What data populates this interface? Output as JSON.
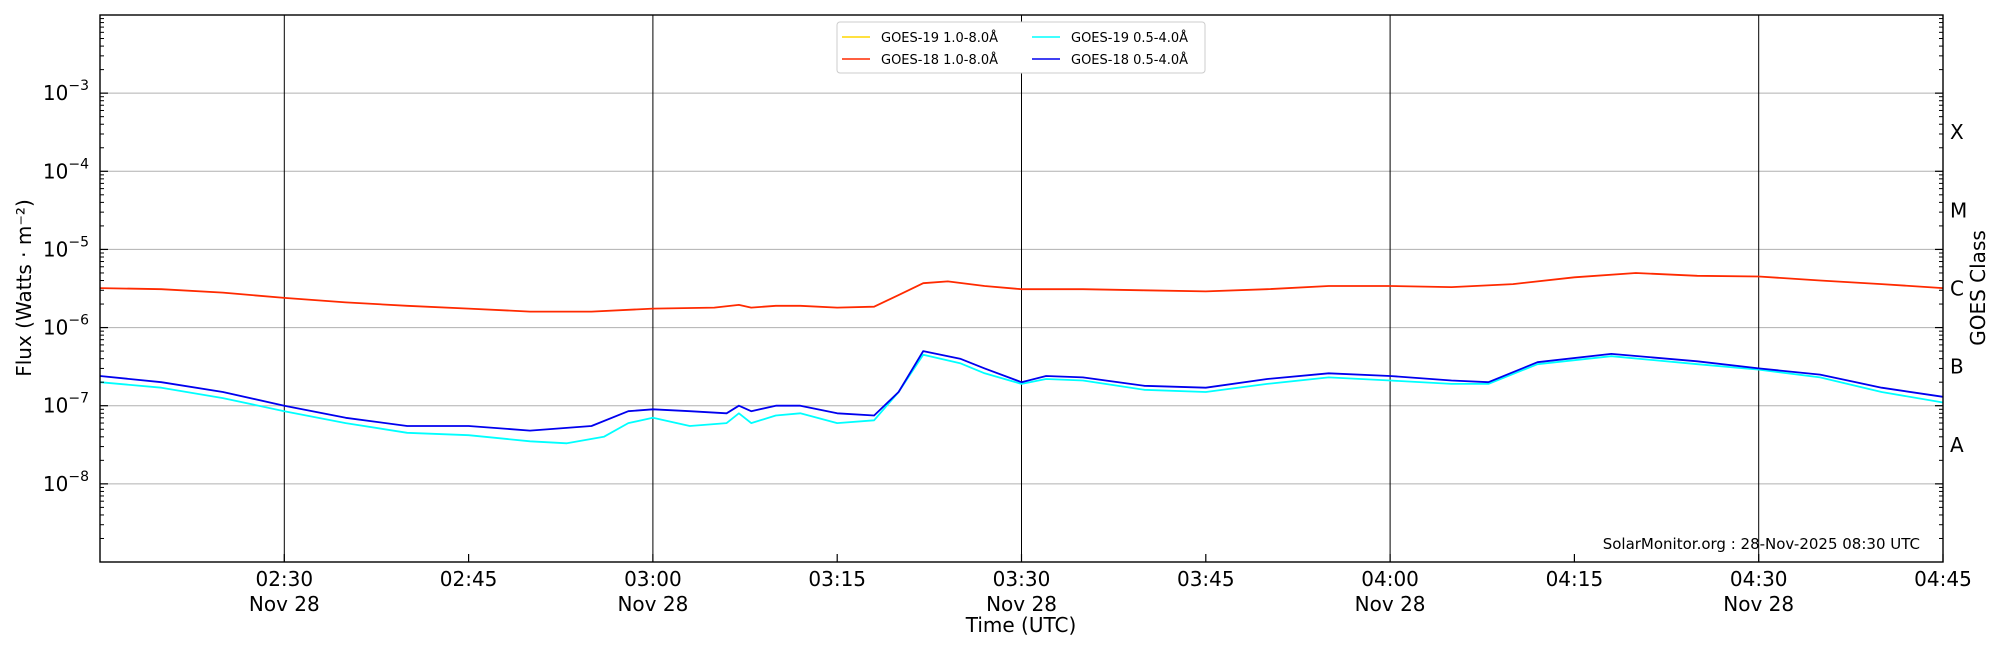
{
  "chart_data": {
    "type": "line",
    "xlabel": "Time (UTC)",
    "ylabel": "Flux (Watts · m⁻²)",
    "right_ylabel": "GOES Class",
    "credit": "SolarMonitor.org : 28-Nov-2025 08:30 UTC",
    "y_scale": "log",
    "ylim": [
      1e-09,
      0.01
    ],
    "xlim": [
      "2025-11-28 02:15",
      "2025-11-28 04:45"
    ],
    "grid": "horizontal at each decade; vertical lines every 30 min",
    "legend_position": "top-center",
    "x_ticks": [
      {
        "t": "02:30",
        "time": "02:30",
        "date": "Nov 28"
      },
      {
        "t": "02:45",
        "time": "02:45",
        "date": ""
      },
      {
        "t": "03:00",
        "time": "03:00",
        "date": "Nov 28"
      },
      {
        "t": "03:15",
        "time": "03:15",
        "date": ""
      },
      {
        "t": "03:30",
        "time": "03:30",
        "date": "Nov 28"
      },
      {
        "t": "03:45",
        "time": "03:45",
        "date": ""
      },
      {
        "t": "04:00",
        "time": "04:00",
        "date": "Nov 28"
      },
      {
        "t": "04:15",
        "time": "04:15",
        "date": ""
      },
      {
        "t": "04:30",
        "time": "04:30",
        "date": "Nov 28"
      },
      {
        "t": "04:45",
        "time": "04:45",
        "date": ""
      }
    ],
    "y_ticks": [
      {
        "value": 1e-08,
        "base": "10",
        "exp": "−8"
      },
      {
        "value": 1e-07,
        "base": "10",
        "exp": "−7"
      },
      {
        "value": 1e-06,
        "base": "10",
        "exp": "−6"
      },
      {
        "value": 1e-05,
        "base": "10",
        "exp": "−5"
      },
      {
        "value": 0.0001,
        "base": "10",
        "exp": "−4"
      },
      {
        "value": 0.001,
        "base": "10",
        "exp": "−3"
      }
    ],
    "goes_classes": [
      {
        "label": "A",
        "value": 3.16e-08
      },
      {
        "label": "B",
        "value": 3.16e-07
      },
      {
        "label": "C",
        "value": 3.16e-06
      },
      {
        "label": "M",
        "value": 3.16e-05
      },
      {
        "label": "X",
        "value": 0.000316
      }
    ],
    "series": [
      {
        "name": "GOES-19 1.0-8.0Å",
        "color": "#ffd700",
        "points": []
      },
      {
        "name": "GOES-18 1.0-8.0Å",
        "color": "#ff2a00",
        "points": [
          [
            "02:15",
            3.2e-06
          ],
          [
            "02:20",
            3.1e-06
          ],
          [
            "02:25",
            2.8e-06
          ],
          [
            "02:30",
            2.4e-06
          ],
          [
            "02:35",
            2.1e-06
          ],
          [
            "02:40",
            1.9e-06
          ],
          [
            "02:45",
            1.75e-06
          ],
          [
            "02:50",
            1.6e-06
          ],
          [
            "02:55",
            1.6e-06
          ],
          [
            "03:00",
            1.75e-06
          ],
          [
            "03:05",
            1.8e-06
          ],
          [
            "03:07",
            1.95e-06
          ],
          [
            "03:08",
            1.8e-06
          ],
          [
            "03:10",
            1.9e-06
          ],
          [
            "03:12",
            1.9e-06
          ],
          [
            "03:15",
            1.8e-06
          ],
          [
            "03:18",
            1.85e-06
          ],
          [
            "03:20",
            2.6e-06
          ],
          [
            "03:22",
            3.7e-06
          ],
          [
            "03:24",
            3.9e-06
          ],
          [
            "03:27",
            3.4e-06
          ],
          [
            "03:30",
            3.1e-06
          ],
          [
            "03:35",
            3.1e-06
          ],
          [
            "03:40",
            3e-06
          ],
          [
            "03:45",
            2.9e-06
          ],
          [
            "03:50",
            3.1e-06
          ],
          [
            "03:55",
            3.4e-06
          ],
          [
            "04:00",
            3.4e-06
          ],
          [
            "04:05",
            3.3e-06
          ],
          [
            "04:10",
            3.6e-06
          ],
          [
            "04:15",
            4.4e-06
          ],
          [
            "04:20",
            5e-06
          ],
          [
            "04:25",
            4.6e-06
          ],
          [
            "04:30",
            4.5e-06
          ],
          [
            "04:35",
            4e-06
          ],
          [
            "04:40",
            3.6e-06
          ],
          [
            "04:45",
            3.2e-06
          ]
        ]
      },
      {
        "name": "GOES-19 0.5-4.0Å",
        "color": "#00ffff",
        "points": [
          [
            "02:15",
            2e-07
          ],
          [
            "02:20",
            1.7e-07
          ],
          [
            "02:25",
            1.25e-07
          ],
          [
            "02:30",
            8.5e-08
          ],
          [
            "02:35",
            6e-08
          ],
          [
            "02:40",
            4.5e-08
          ],
          [
            "02:45",
            4.2e-08
          ],
          [
            "02:50",
            3.5e-08
          ],
          [
            "02:53",
            3.3e-08
          ],
          [
            "02:56",
            4e-08
          ],
          [
            "02:58",
            6e-08
          ],
          [
            "03:00",
            7e-08
          ],
          [
            "03:03",
            5.5e-08
          ],
          [
            "03:06",
            6e-08
          ],
          [
            "03:07",
            8e-08
          ],
          [
            "03:08",
            6e-08
          ],
          [
            "03:10",
            7.5e-08
          ],
          [
            "03:12",
            8e-08
          ],
          [
            "03:15",
            6e-08
          ],
          [
            "03:18",
            6.5e-08
          ],
          [
            "03:20",
            1.5e-07
          ],
          [
            "03:22",
            4.5e-07
          ],
          [
            "03:25",
            3.5e-07
          ],
          [
            "03:27",
            2.6e-07
          ],
          [
            "03:30",
            1.9e-07
          ],
          [
            "03:32",
            2.2e-07
          ],
          [
            "03:35",
            2.1e-07
          ],
          [
            "03:40",
            1.6e-07
          ],
          [
            "03:45",
            1.5e-07
          ],
          [
            "03:50",
            1.9e-07
          ],
          [
            "03:55",
            2.3e-07
          ],
          [
            "04:00",
            2.1e-07
          ],
          [
            "04:05",
            1.9e-07
          ],
          [
            "04:08",
            1.9e-07
          ],
          [
            "04:12",
            3.4e-07
          ],
          [
            "04:18",
            4.3e-07
          ],
          [
            "04:25",
            3.4e-07
          ],
          [
            "04:30",
            2.9e-07
          ],
          [
            "04:35",
            2.3e-07
          ],
          [
            "04:40",
            1.5e-07
          ],
          [
            "04:45",
            1.1e-07
          ]
        ]
      },
      {
        "name": "GOES-18 0.5-4.0Å",
        "color": "#0000ee",
        "points": [
          [
            "02:15",
            2.4e-07
          ],
          [
            "02:20",
            2e-07
          ],
          [
            "02:25",
            1.5e-07
          ],
          [
            "02:30",
            1e-07
          ],
          [
            "02:35",
            7e-08
          ],
          [
            "02:40",
            5.5e-08
          ],
          [
            "02:45",
            5.5e-08
          ],
          [
            "02:50",
            4.8e-08
          ],
          [
            "02:55",
            5.5e-08
          ],
          [
            "02:58",
            8.5e-08
          ],
          [
            "03:00",
            9e-08
          ],
          [
            "03:03",
            8.5e-08
          ],
          [
            "03:06",
            8e-08
          ],
          [
            "03:07",
            1e-07
          ],
          [
            "03:08",
            8.5e-08
          ],
          [
            "03:10",
            1e-07
          ],
          [
            "03:12",
            1e-07
          ],
          [
            "03:15",
            8e-08
          ],
          [
            "03:18",
            7.5e-08
          ],
          [
            "03:20",
            1.5e-07
          ],
          [
            "03:22",
            5e-07
          ],
          [
            "03:25",
            4e-07
          ],
          [
            "03:27",
            3e-07
          ],
          [
            "03:30",
            2e-07
          ],
          [
            "03:32",
            2.4e-07
          ],
          [
            "03:35",
            2.3e-07
          ],
          [
            "03:40",
            1.8e-07
          ],
          [
            "03:45",
            1.7e-07
          ],
          [
            "03:50",
            2.2e-07
          ],
          [
            "03:55",
            2.6e-07
          ],
          [
            "04:00",
            2.4e-07
          ],
          [
            "04:05",
            2.1e-07
          ],
          [
            "04:08",
            2e-07
          ],
          [
            "04:12",
            3.6e-07
          ],
          [
            "04:18",
            4.6e-07
          ],
          [
            "04:25",
            3.7e-07
          ],
          [
            "04:30",
            3e-07
          ],
          [
            "04:35",
            2.5e-07
          ],
          [
            "04:40",
            1.7e-07
          ],
          [
            "04:45",
            1.3e-07
          ]
        ]
      }
    ]
  }
}
